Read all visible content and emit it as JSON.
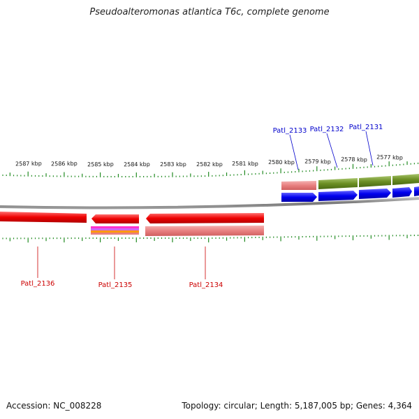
{
  "title": "Pseudoalteromonas atlantica T6c, complete genome",
  "footer": {
    "accession": "Accession: NC_008228",
    "summary": "Topology: circular; Length: 5,187,005 bp; Genes: 4,364"
  },
  "scale": {
    "ticks": [
      "2587 kbp",
      "2586 kbp",
      "2585 kbp",
      "2584 kbp",
      "2583 kbp",
      "2582 kbp",
      "2581 kbp",
      "2580 kbp",
      "2579 kbp",
      "2578 kbp",
      "2577 kbp"
    ]
  },
  "gene_labels": {
    "forward": [
      "Patl_2133",
      "Patl_2132",
      "Patl_2131"
    ],
    "reverse": [
      "Patl_2136",
      "Patl_2135",
      "Patl_2134"
    ]
  },
  "colors": {
    "forward_label": "#0000cc",
    "reverse_label": "#cc0000",
    "cds_forward": "#0000ee",
    "cds_reverse": "#ee0000",
    "feature_green": "#6b8e23",
    "feature_pink": "#e88080",
    "tick_green": "#228b22",
    "backbone": "#888888"
  }
}
